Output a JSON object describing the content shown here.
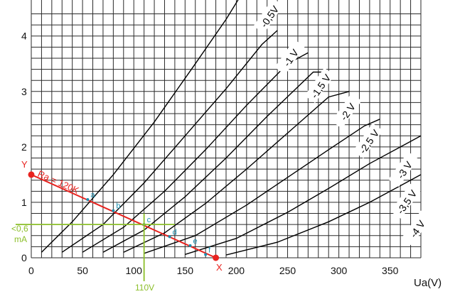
{
  "chart_data": {
    "type": "line",
    "xlabel": "Ua(V)",
    "ylabel": "",
    "xlim": [
      0,
      380
    ],
    "ylim": [
      0,
      4.65
    ],
    "x_ticks": [
      "0",
      "50",
      "100",
      "150",
      "200",
      "250",
      "300",
      "350"
    ],
    "y_ticks": [
      "0",
      "1",
      "2",
      "3",
      "4"
    ],
    "grid": true,
    "series": [
      {
        "name": "-0,5V",
        "label": "-0,5V",
        "x": [
          10,
          40,
          80,
          120,
          160,
          190,
          210
        ],
        "y": [
          0.1,
          0.65,
          1.5,
          2.45,
          3.5,
          4.3,
          4.9
        ]
      },
      {
        "name": "-1 V",
        "label": "-1 V",
        "x": [
          30,
          70,
          110,
          150,
          190,
          225,
          240
        ],
        "y": [
          0.1,
          0.6,
          1.35,
          2.2,
          3.05,
          3.85,
          4.1
        ]
      },
      {
        "name": "-1,5 V",
        "label": "-1,5 V",
        "x": [
          50,
          90,
          130,
          170,
          210,
          250,
          270
        ],
        "y": [
          0.1,
          0.55,
          1.2,
          1.95,
          2.75,
          3.5,
          3.7
        ]
      },
      {
        "name": "-2 V",
        "label": "-2 V",
        "x": [
          70,
          110,
          150,
          190,
          230,
          275,
          290
        ],
        "y": [
          0.1,
          0.5,
          1.1,
          1.8,
          2.55,
          3.35,
          3.35
        ]
      },
      {
        "name": "-2,5 V",
        "label": "-2,5 V",
        "x": [
          90,
          130,
          170,
          210,
          250,
          290,
          310
        ],
        "y": [
          0.1,
          0.45,
          0.98,
          1.6,
          2.25,
          2.9,
          3.0
        ]
      },
      {
        "name": "-3 V",
        "label": "-3 V",
        "x": [
          110,
          160,
          210,
          250,
          290,
          325,
          340
        ],
        "y": [
          0.08,
          0.4,
          0.95,
          1.45,
          1.95,
          2.38,
          2.5
        ]
      },
      {
        "name": "-3,5 V",
        "label": "-3,5 V",
        "x": [
          150,
          200,
          250,
          290,
          330,
          365,
          380
        ],
        "y": [
          0.06,
          0.35,
          0.82,
          1.25,
          1.7,
          2.05,
          2.2
        ]
      },
      {
        "name": "-4 V",
        "label": "-4 V",
        "x": [
          190,
          240,
          290,
          330,
          365,
          380
        ],
        "y": [
          0.05,
          0.28,
          0.65,
          1.0,
          1.35,
          1.5
        ]
      }
    ],
    "load_line": {
      "label": "Ra = 120K",
      "x": [
        0,
        180
      ],
      "y": [
        1.5,
        0.0
      ],
      "points": [
        {
          "label": "a",
          "x": 55,
          "y": 1.05
        },
        {
          "label": "b",
          "x": 80,
          "y": 0.85
        },
        {
          "label": "c",
          "x": 110,
          "y": 0.6
        },
        {
          "label": "d",
          "x": 135,
          "y": 0.38
        },
        {
          "label": "e",
          "x": 155,
          "y": 0.22
        },
        {
          "label": "f",
          "x": 170,
          "y": 0.06
        }
      ]
    },
    "annotations": {
      "y_marker": "Y",
      "x_marker": "X",
      "operating_current": "<0,6",
      "operating_current_unit": "mA",
      "operating_voltage": "110V"
    },
    "op_point": {
      "x": 110,
      "y": 0.6
    },
    "colors": {
      "grid": "#2a2a2a",
      "curve": "#000000",
      "load_line": "#e8231f",
      "points": "#1a8fb0",
      "operating": "#8cbf2a"
    }
  }
}
